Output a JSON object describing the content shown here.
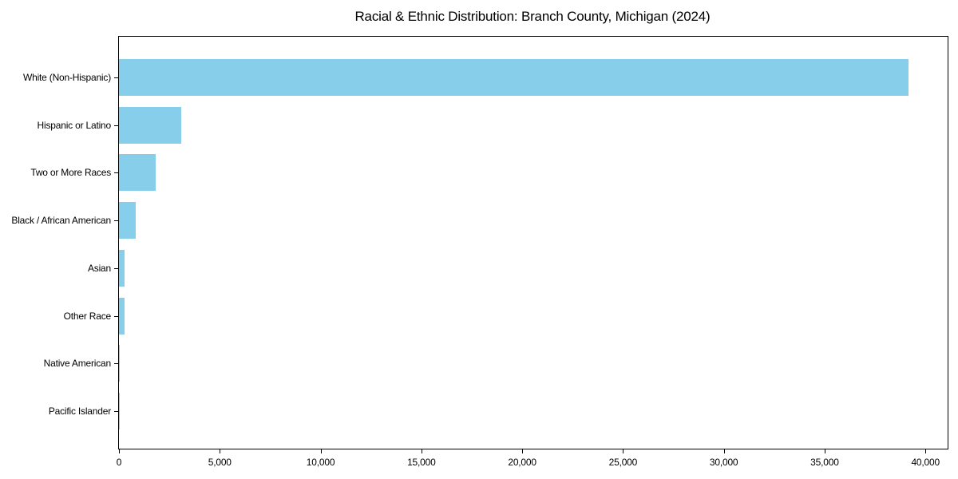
{
  "chart_data": {
    "type": "bar",
    "orientation": "horizontal",
    "title": "Racial & Ethnic Distribution: Branch County, Michigan (2024)",
    "categories": [
      "White (Non-Hispanic)",
      "Hispanic or Latino",
      "Two or More Races",
      "Black / African American",
      "Asian",
      "Other Race",
      "Native American",
      "Pacific Islander"
    ],
    "values": [
      39150,
      3090,
      1820,
      830,
      280,
      270,
      50,
      10
    ],
    "xlabel": "",
    "ylabel": "",
    "xlim": [
      0,
      41100
    ],
    "x_ticks": [
      0,
      5000,
      10000,
      15000,
      20000,
      25000,
      30000,
      35000,
      40000
    ],
    "x_tick_labels": [
      "0",
      "5,000",
      "10,000",
      "15,000",
      "20,000",
      "25,000",
      "30,000",
      "35,000",
      "40,000"
    ],
    "bar_color": "#87CEEB",
    "grid": false,
    "legend": null
  }
}
